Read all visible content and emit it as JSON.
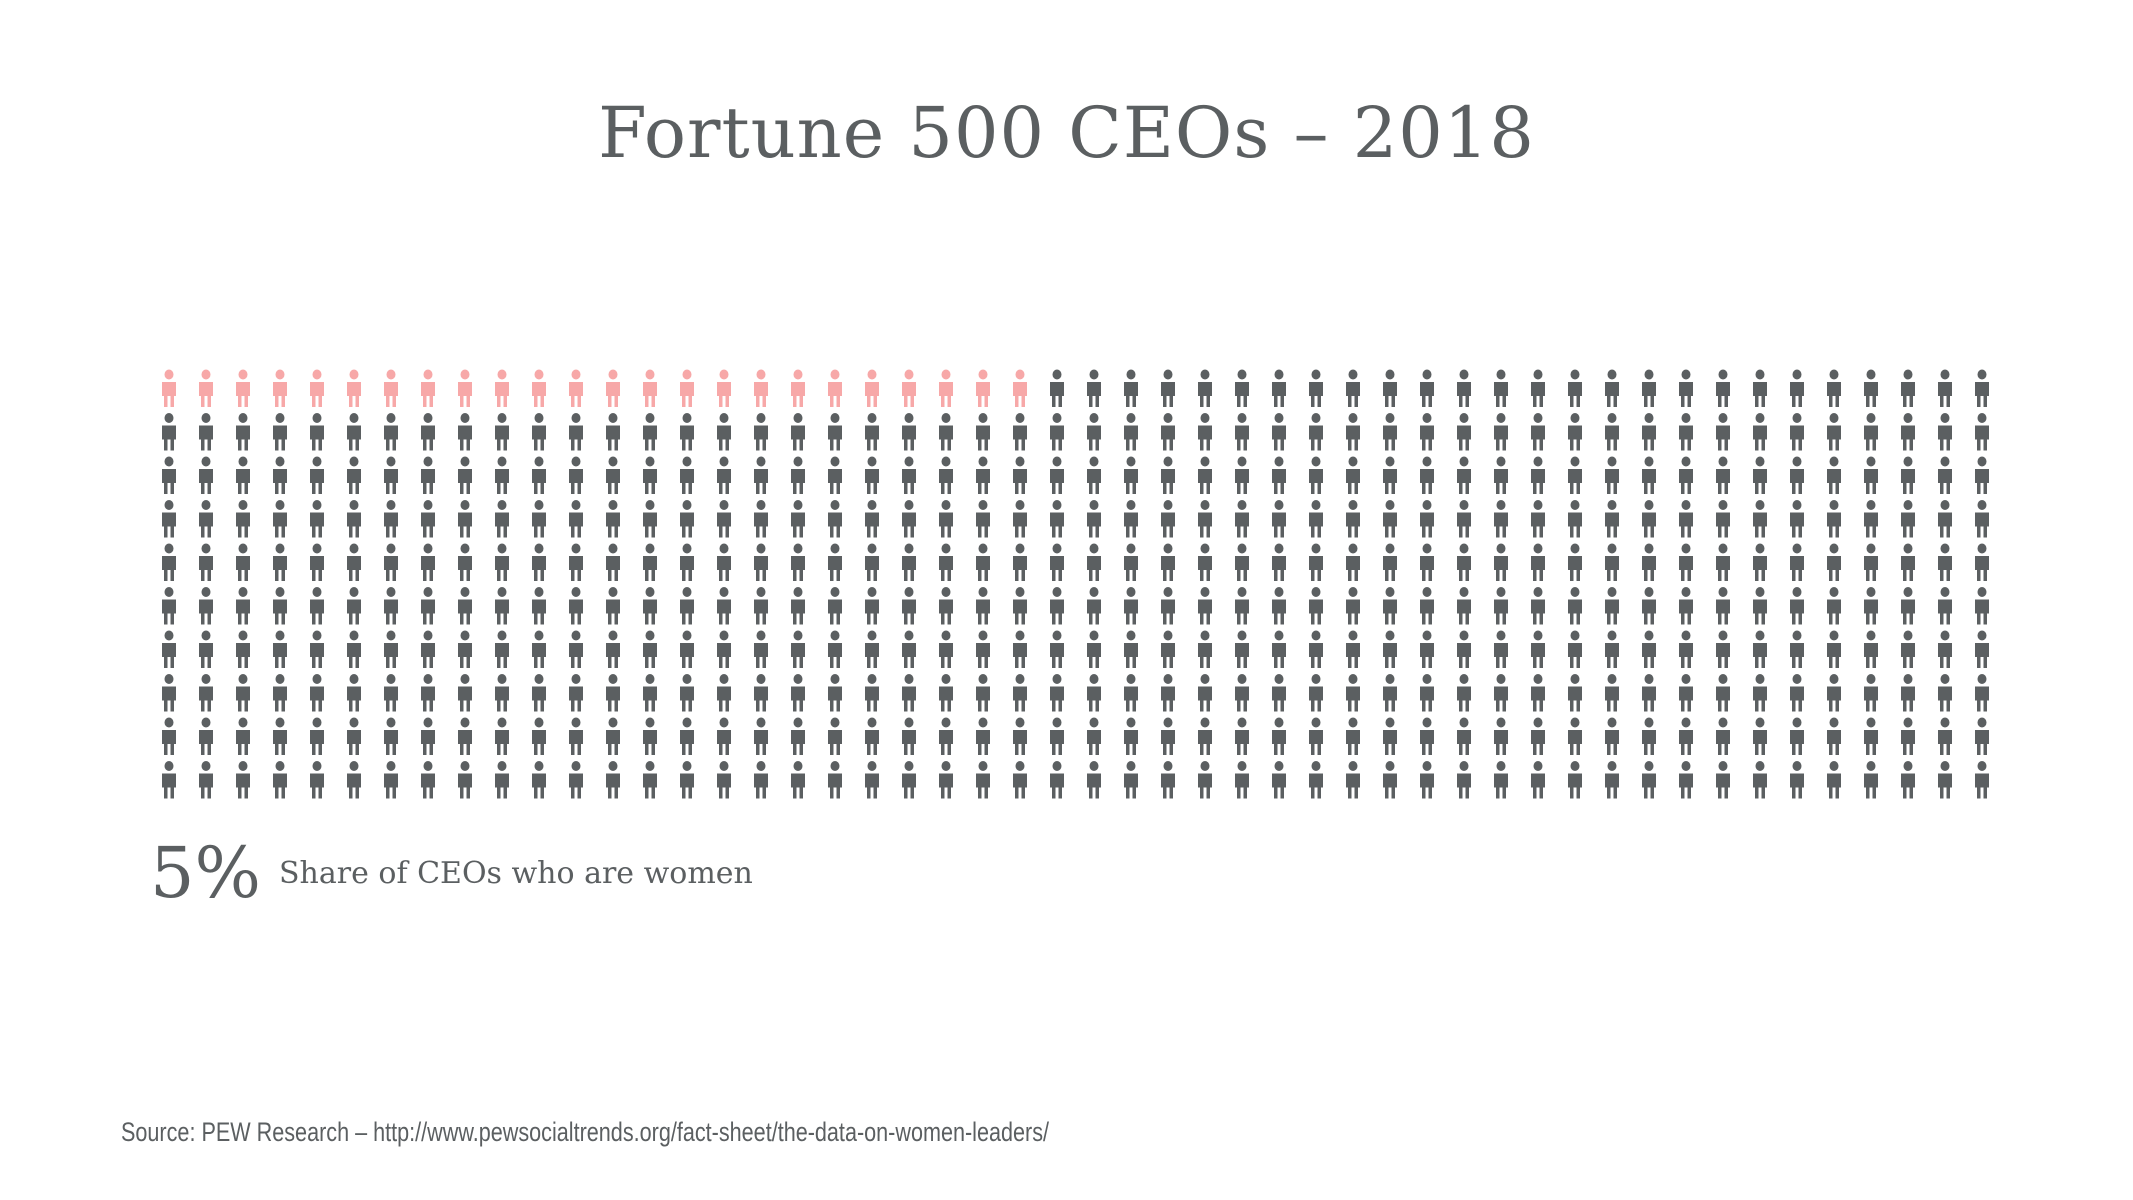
{
  "chart_data": {
    "type": "pictogram",
    "title": "Fortune 500 CEOs – 2018",
    "total_icons": 500,
    "columns": 50,
    "rows": 10,
    "highlighted_icons": 24,
    "highlight_color": "#f7a8a8",
    "base_color": "#5b5f61",
    "icon": "person-icon",
    "stat_value": "5%",
    "stat_label": "Share of CEOs who are women"
  },
  "source": "Source: PEW Research – http://www.pewsocialtrends.org/fact-sheet/the-data-on-women-leaders/"
}
